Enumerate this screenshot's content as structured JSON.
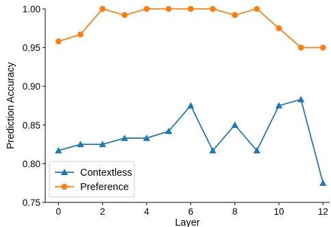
{
  "chart_data": {
    "type": "line",
    "title": "",
    "xlabel": "Layer",
    "ylabel": "Prediction Accuracy",
    "x": [
      0,
      1,
      2,
      3,
      4,
      5,
      6,
      7,
      8,
      9,
      10,
      11,
      12
    ],
    "xlim": [
      -0.6,
      12.3
    ],
    "ylim": [
      0.75,
      1.0
    ],
    "xticks": [
      0,
      2,
      4,
      6,
      8,
      10,
      12
    ],
    "yticks": [
      0.75,
      0.8,
      0.85,
      0.9,
      0.95,
      1.0
    ],
    "ytick_labels": [
      "0.75",
      "0.80",
      "0.85",
      "0.90",
      "0.95",
      "1.00"
    ],
    "grid": false,
    "legend_position": "lower-left",
    "series": [
      {
        "name": "Contextless",
        "color": "#1f77b4",
        "marker": "triangle",
        "values": [
          0.817,
          0.825,
          0.825,
          0.833,
          0.833,
          0.842,
          0.875,
          0.817,
          0.85,
          0.817,
          0.875,
          0.883,
          0.775
        ]
      },
      {
        "name": "Preference",
        "color": "#ff7f0e",
        "marker": "circle",
        "values": [
          0.958,
          0.967,
          1.0,
          0.992,
          1.0,
          1.0,
          1.0,
          1.0,
          0.992,
          1.0,
          0.975,
          0.95,
          0.95
        ]
      }
    ]
  }
}
